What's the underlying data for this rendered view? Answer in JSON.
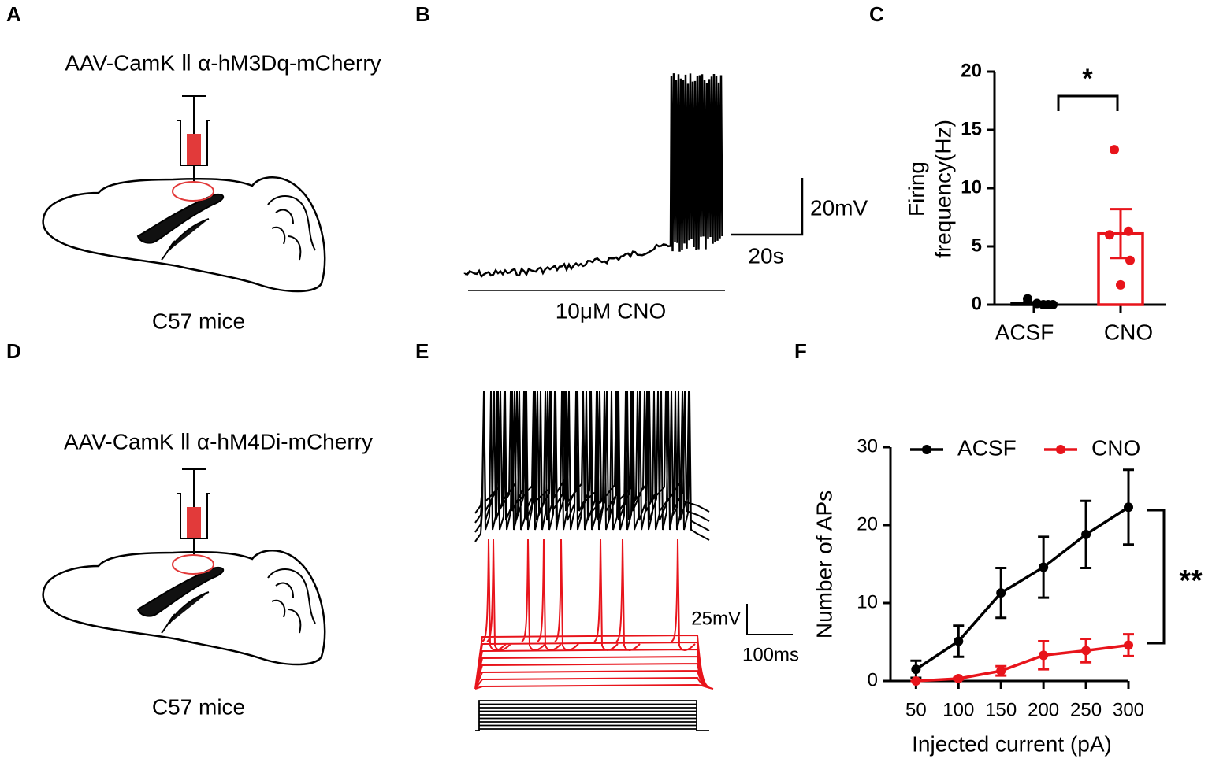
{
  "panel_labels": [
    "A",
    "B",
    "C",
    "D",
    "E",
    "F"
  ],
  "diagram_a": {
    "virus": "AAV-CamK Ⅱ α-hM3Dq-mCherry",
    "mouse": "C57 mice"
  },
  "diagram_d": {
    "virus": "AAV-CamK Ⅱ α-hM4Di-mCherry",
    "mouse": "C57 mice"
  },
  "trace_b": {
    "scale_y": "20mV",
    "scale_x": "20s",
    "drug": "10μM CNO"
  },
  "trace_e": {
    "scale_y": "25mV",
    "scale_x": "100ms"
  },
  "chart_data": [
    {
      "type": "bar",
      "y_label": [
        "Firing",
        "frequency(Hz)"
      ],
      "categories": [
        "ACSF",
        "CNO"
      ],
      "values": [
        0.1,
        6.1
      ],
      "errors": [
        0.1,
        2.1
      ],
      "colors": [
        "#000000",
        "#e8141b"
      ],
      "points": [
        [
          0.5,
          0.1,
          0,
          0,
          0
        ],
        [
          13.3,
          6.3,
          6.0,
          3.8,
          1.7
        ]
      ],
      "ylim": [
        0,
        20
      ],
      "yticks": [
        0,
        5,
        10,
        15,
        20
      ],
      "annotation": "*"
    },
    {
      "type": "line",
      "x_label": "Injected current (pA)",
      "y_label": "Number of APs",
      "x": [
        50,
        100,
        150,
        200,
        250,
        300
      ],
      "xlim": [
        20,
        300
      ],
      "xticks": [
        50,
        100,
        150,
        200,
        250,
        300
      ],
      "ylim": [
        0,
        30
      ],
      "yticks": [
        0,
        10,
        20,
        30
      ],
      "legend": "top",
      "series": [
        {
          "name": "ACSF",
          "color": "#000000",
          "values": [
            1.5,
            5.1,
            11.3,
            14.6,
            18.8,
            22.3
          ],
          "errors": [
            1.1,
            2.0,
            3.2,
            3.9,
            4.3,
            4.8
          ]
        },
        {
          "name": "CNO",
          "color": "#e8141b",
          "values": [
            0,
            0.3,
            1.3,
            3.3,
            3.9,
            4.6
          ],
          "errors": [
            0,
            0.1,
            0.6,
            1.8,
            1.5,
            1.4
          ]
        }
      ],
      "annotation": "**"
    }
  ]
}
